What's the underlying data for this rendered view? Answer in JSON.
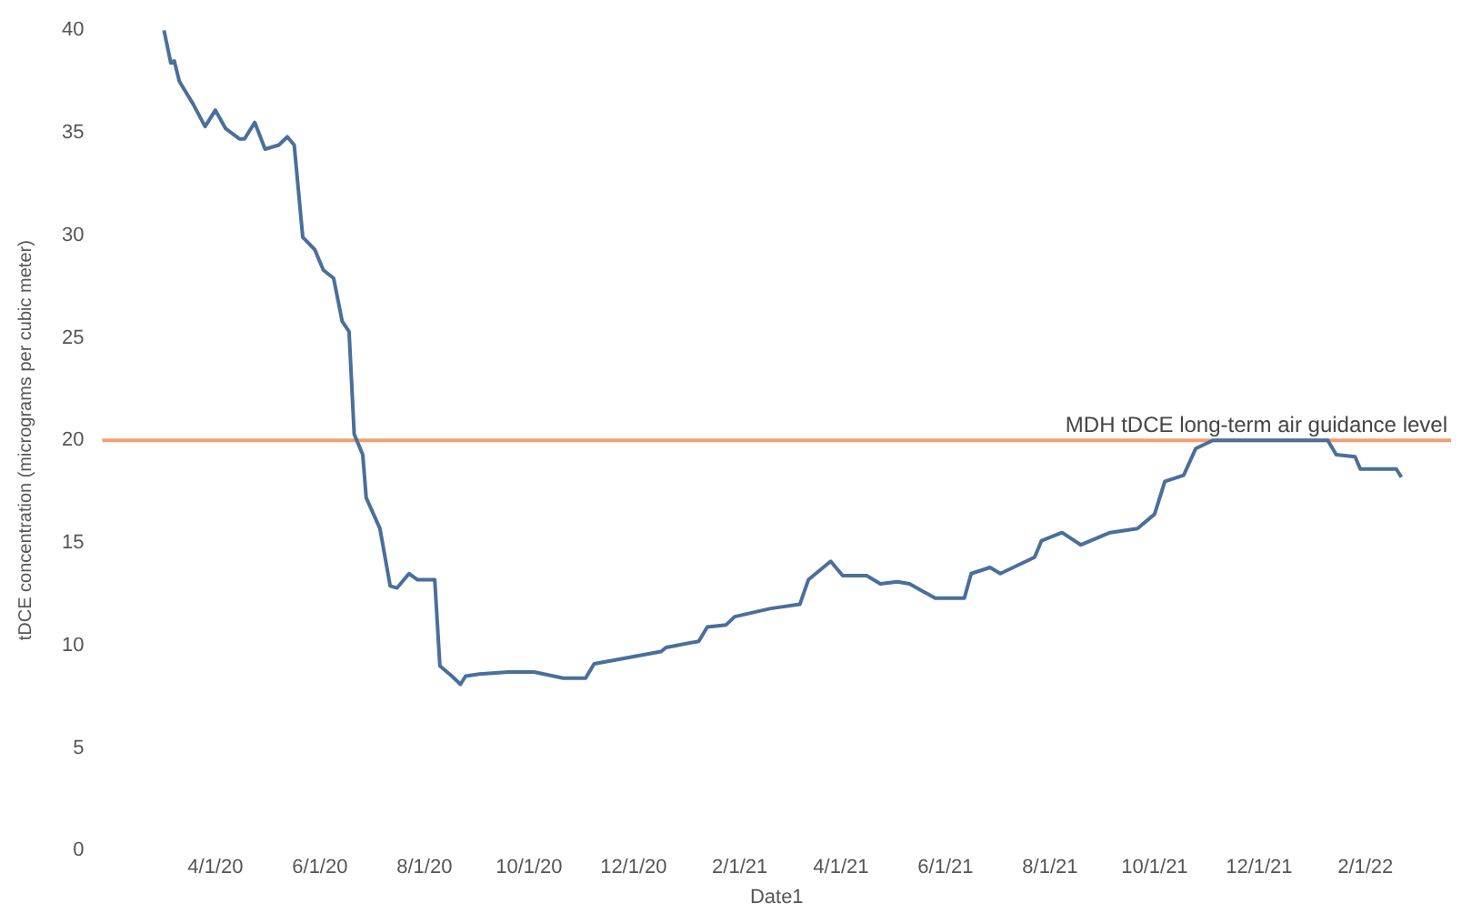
{
  "chart_data": {
    "type": "line",
    "xlabel": "Date1",
    "ylabel": "tDCE concentration (micrograms per cubic meter)",
    "x": [
      "2020-03-02",
      "2020-03-06",
      "2020-03-08",
      "2020-03-11",
      "2020-03-19",
      "2020-03-26",
      "2020-04-01",
      "2020-04-07",
      "2020-04-15",
      "2020-04-18",
      "2020-04-24",
      "2020-04-30",
      "2020-05-08",
      "2020-05-13",
      "2020-05-17",
      "2020-05-22",
      "2020-05-29",
      "2020-06-03",
      "2020-06-09",
      "2020-06-14",
      "2020-06-18",
      "2020-06-21",
      "2020-06-26",
      "2020-06-28",
      "2020-07-06",
      "2020-07-12",
      "2020-07-16",
      "2020-07-23",
      "2020-07-28",
      "2020-08-07",
      "2020-08-10",
      "2020-08-17",
      "2020-08-22",
      "2020-08-25",
      "2020-09-02",
      "2020-09-19",
      "2020-10-04",
      "2020-10-21",
      "2020-11-03",
      "2020-11-08",
      "2020-12-17",
      "2020-12-20",
      "2021-01-08",
      "2021-01-13",
      "2021-01-24",
      "2021-01-29",
      "2021-02-19",
      "2021-03-08",
      "2021-03-13",
      "2021-03-26",
      "2021-04-02",
      "2021-04-16",
      "2021-04-24",
      "2021-05-04",
      "2021-05-11",
      "2021-05-26",
      "2021-06-12",
      "2021-06-16",
      "2021-06-27",
      "2021-07-03",
      "2021-07-23",
      "2021-07-27",
      "2021-08-08",
      "2021-08-19",
      "2021-09-05",
      "2021-09-21",
      "2021-10-01",
      "2021-10-07",
      "2021-10-18",
      "2021-10-25",
      "2021-11-04",
      "2021-12-06",
      "2022-01-10",
      "2022-01-15",
      "2022-01-26",
      "2022-01-29",
      "2022-02-19",
      "2022-02-22"
    ],
    "series": [
      {
        "color": "#4a6f9a",
        "values": [
          40,
          38.4,
          38.5,
          37.5,
          36.4,
          35.3,
          36.1,
          35.2,
          34.7,
          34.7,
          35.5,
          34.2,
          34.4,
          34.8,
          34.4,
          29.9,
          29.3,
          28.3,
          27.9,
          25.8,
          25.3,
          20.3,
          19.3,
          17.2,
          15.7,
          12.9,
          12.8,
          13.5,
          13.2,
          13.2,
          9.0,
          8.5,
          8.1,
          8.5,
          8.6,
          8.7,
          8.7,
          8.4,
          8.4,
          9.1,
          9.7,
          9.9,
          10.2,
          10.9,
          11.0,
          11.4,
          11.8,
          12.0,
          13.2,
          14.1,
          13.4,
          13.4,
          13.0,
          13.1,
          13.0,
          12.3,
          12.3,
          13.5,
          13.8,
          13.5,
          14.3,
          15.1,
          15.5,
          14.9,
          15.5,
          15.7,
          16.4,
          18.0,
          18.3,
          19.6,
          20.0,
          20.0,
          20.0,
          19.3,
          19.2,
          18.6,
          18.6,
          18.2
        ]
      }
    ],
    "xlim": [
      "2020-01-26",
      "2022-03-23"
    ],
    "xticks": [
      {
        "value": "2020-04-01",
        "label": "4/1/20"
      },
      {
        "value": "2020-06-01",
        "label": "6/1/20"
      },
      {
        "value": "2020-08-01",
        "label": "8/1/20"
      },
      {
        "value": "2020-10-01",
        "label": "10/1/20"
      },
      {
        "value": "2020-12-01",
        "label": "12/1/20"
      },
      {
        "value": "2021-02-01",
        "label": "2/1/21"
      },
      {
        "value": "2021-04-01",
        "label": "4/1/21"
      },
      {
        "value": "2021-06-01",
        "label": "6/1/21"
      },
      {
        "value": "2021-08-01",
        "label": "8/1/21"
      },
      {
        "value": "2021-10-01",
        "label": "10/1/21"
      },
      {
        "value": "2021-12-01",
        "label": "12/1/21"
      },
      {
        "value": "2022-02-01",
        "label": "2/1/22"
      }
    ],
    "ylim": [
      0,
      40
    ],
    "yticks": [
      0,
      5,
      10,
      15,
      20,
      25,
      30,
      35,
      40
    ],
    "ref_lines": [
      {
        "axis": "y",
        "value": 20,
        "label": "MDH tDCE long-term air guidance level",
        "color": "#f0a070"
      }
    ],
    "grid": false,
    "legend": false,
    "marker": "none",
    "line_style": "solid"
  }
}
